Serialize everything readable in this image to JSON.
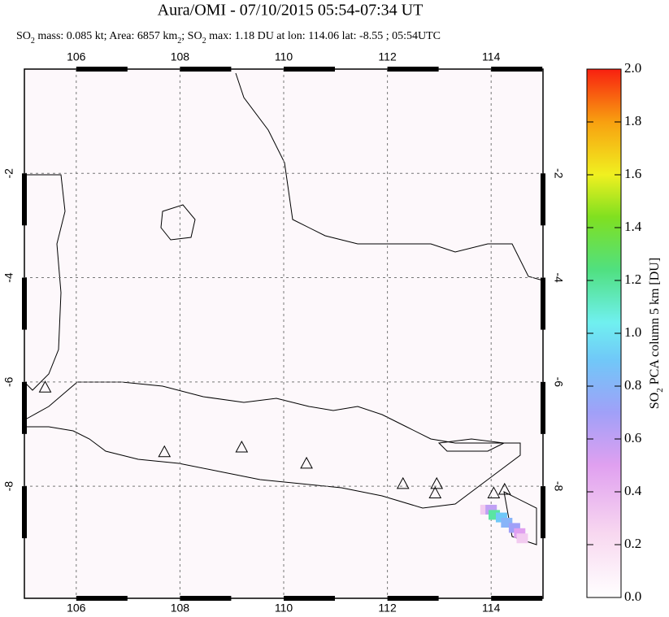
{
  "chart_data": {
    "type": "map",
    "title": "Aura/OMI - 07/10/2015 05:54-07:34 UT",
    "subtitle_parts": [
      "SO",
      "2",
      " mass: 0.085 kt; Area: 6857 km",
      "2",
      "; SO",
      "2",
      " max: 1.18 DU at lon: 114.06 lat: -8.55 ; 05:54UTC"
    ],
    "xlim": [
      105,
      115
    ],
    "ylim": [
      -10.15,
      0
    ],
    "xticks": [
      106,
      108,
      110,
      112,
      114
    ],
    "yticks": [
      -2,
      -4,
      -6,
      -8
    ],
    "grid": true,
    "volcanoes": {
      "lon": [
        105.4,
        107.7,
        109.19,
        110.44,
        112.3,
        112.95,
        112.92,
        114.05,
        114.26
      ],
      "lat": [
        -6.1,
        -7.34,
        -7.25,
        -7.56,
        -7.95,
        -7.95,
        -8.13,
        -8.13,
        -8.06
      ]
    },
    "so2_pixels": {
      "lon": [
        113.9,
        114.0,
        114.06,
        114.2,
        114.3,
        114.45,
        114.55,
        114.6
      ],
      "lat": [
        -8.45,
        -8.45,
        -8.55,
        -8.6,
        -8.7,
        -8.8,
        -8.9,
        -9.0
      ],
      "values": [
        0.3,
        0.6,
        1.18,
        0.9,
        0.8,
        0.7,
        0.5,
        0.3
      ]
    },
    "colorbar": {
      "label_parts": [
        "SO",
        "2",
        " PCA column 5 km [DU]"
      ],
      "lim": [
        0,
        2
      ],
      "ticks": [
        {
          "value": 0,
          "label": "0.0"
        },
        0.2,
        0.4,
        0.6,
        0.8,
        {
          "value": 1,
          "label": "1.0"
        },
        1.2,
        1.4,
        1.6,
        1.8,
        {
          "value": 2,
          "label": "2.0"
        }
      ]
    }
  }
}
